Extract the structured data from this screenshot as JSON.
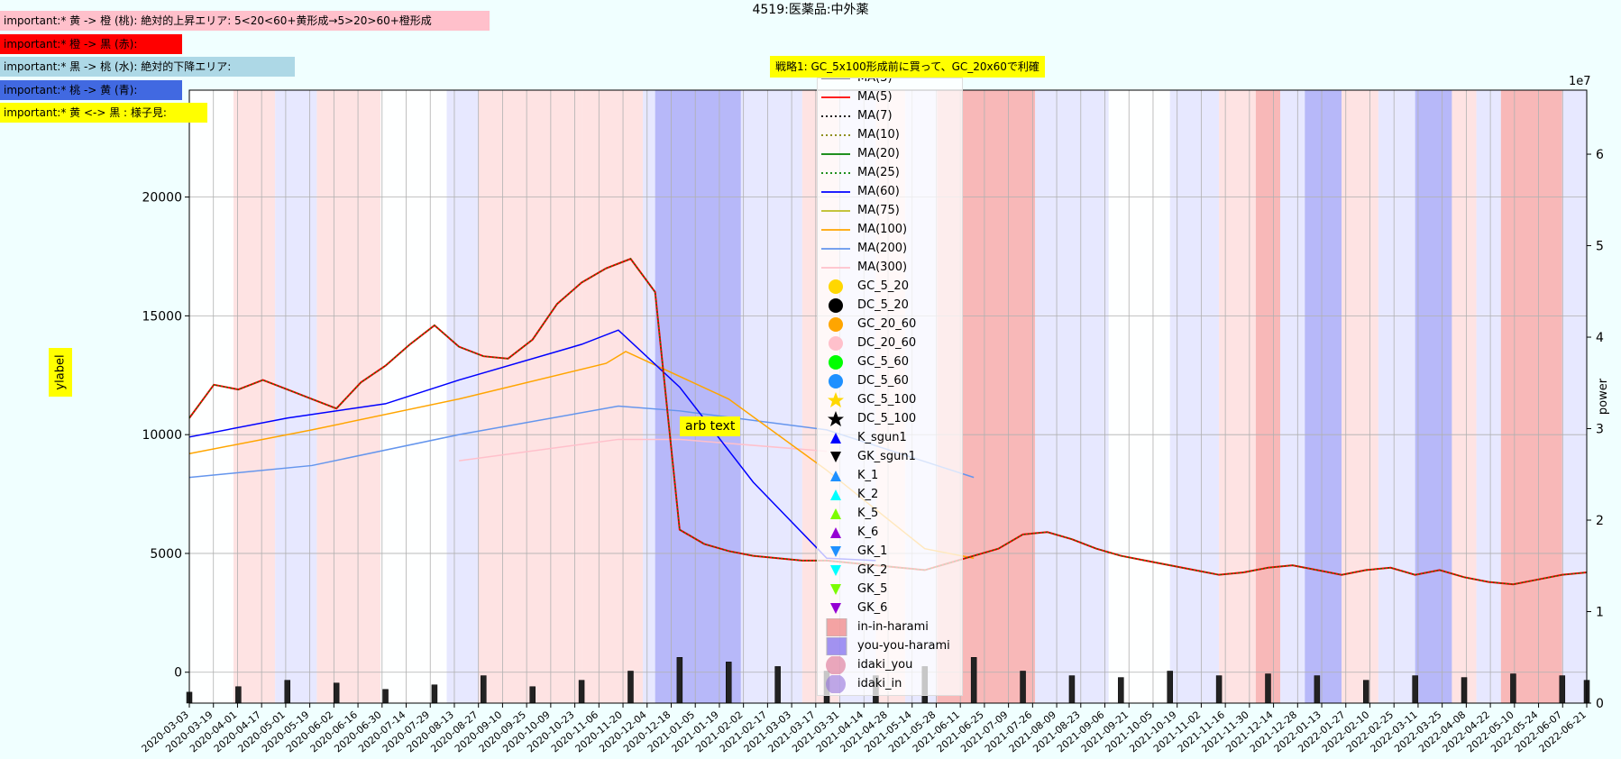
{
  "notes": [
    "important:* 黄 -> 橙 (桃): 絶対的上昇エリア: 5<20<60+黄形成→5>20>60+橙形成",
    "important:* 橙 -> 黒 (赤):",
    "important:* 黒 -> 桃 (水): 絶対的下降エリア:",
    "important:* 桃 -> 黄 (青):",
    "important:* 黄 <-> 黒 : 様子見:"
  ],
  "chart_data": {
    "type": "line",
    "title": "4519:医薬品:中外薬",
    "annotation_strategy": "戦略1: GC_5x100形成前に買って、GC_20x60で利確",
    "annotation_arb": "arb text",
    "ylabel": "ylabel",
    "y2label": "power",
    "y2_multiplier": "1e7",
    "ylim": [
      -1300,
      24500
    ],
    "y2lim": [
      0,
      6.7
    ],
    "yticks": [
      "0",
      "5000",
      "10000",
      "15000",
      "20000"
    ],
    "y2ticks": [
      "0",
      "1",
      "2",
      "3",
      "4",
      "5",
      "6"
    ],
    "x_start": "2020-03-03",
    "x_end": "2022-06-21",
    "x_tick_labels": [
      "2020-03-03",
      "2020-03-19",
      "2020-04-01",
      "2020-04-17",
      "2020-05-01",
      "2020-05-19",
      "2020-06-02",
      "2020-06-16",
      "2020-06-30",
      "2020-07-14",
      "2020-07-29",
      "2020-08-13",
      "2020-08-27",
      "2020-09-10",
      "2020-09-25",
      "2020-10-09",
      "2020-10-23",
      "2020-11-06",
      "2020-11-20",
      "2020-12-04",
      "2020-12-18",
      "2021-01-05",
      "2021-01-19",
      "2021-02-02",
      "2021-02-17",
      "2021-03-03",
      "2021-03-17",
      "2021-03-31",
      "2021-04-14",
      "2021-04-28",
      "2021-05-14",
      "2021-05-28",
      "2021-06-11",
      "2021-06-25",
      "2021-07-09",
      "2021-07-26",
      "2021-08-09",
      "2021-08-23",
      "2021-09-06",
      "2021-09-21",
      "2021-10-05",
      "2021-10-19",
      "2021-11-02",
      "2021-11-16",
      "2021-11-30",
      "2021-12-14",
      "2021-12-28",
      "2022-01-13",
      "2022-01-27",
      "2022-02-10",
      "2022-02-25",
      "2022-03-11",
      "2022-03-25",
      "2022-04-08",
      "2022-04-22",
      "2022-05-10",
      "2022-05-24",
      "2022-06-07",
      "2022-06-21"
    ],
    "price_series": {
      "name": "price",
      "x": [
        0,
        10,
        20,
        30,
        40,
        50,
        60,
        70,
        80,
        90,
        100,
        110,
        120,
        130,
        140,
        150,
        160,
        170,
        180,
        190,
        200,
        210,
        220,
        230,
        240,
        250,
        260,
        270,
        280,
        290,
        300,
        310,
        320,
        330,
        340,
        350,
        360,
        370,
        380,
        390,
        400,
        410,
        420,
        430,
        440,
        450,
        460,
        470,
        480,
        490,
        500,
        510,
        520,
        530,
        540,
        550,
        560,
        570
      ],
      "y": [
        10700,
        12100,
        11900,
        12300,
        11900,
        11500,
        11100,
        12200,
        12900,
        13800,
        14600,
        13700,
        13300,
        13200,
        14000,
        15500,
        16400,
        17000,
        17400,
        16000,
        6000,
        5400,
        5100,
        4900,
        4800,
        4700,
        4700,
        4600,
        4500,
        4400,
        4300,
        4600,
        4900,
        5200,
        5800,
        5900,
        5600,
        5200,
        4900,
        4700,
        4500,
        4300,
        4100,
        4200,
        4400,
        4500,
        4300,
        4100,
        4300,
        4400,
        4100,
        4300,
        4000,
        3800,
        3700,
        3900,
        4100,
        4200
      ]
    },
    "moving_averages": [
      {
        "name": "MA(3)",
        "color": "#808080",
        "dash": "solid"
      },
      {
        "name": "MA(5)",
        "color": "#ff0000",
        "dash": "solid"
      },
      {
        "name": "MA(7)",
        "color": "#000000",
        "dash": "dotted"
      },
      {
        "name": "MA(10)",
        "color": "#808000",
        "dash": "dotted"
      },
      {
        "name": "MA(20)",
        "color": "#008000",
        "dash": "solid"
      },
      {
        "name": "MA(25)",
        "color": "#008000",
        "dash": "dotted"
      },
      {
        "name": "MA(60)",
        "color": "#0000ff",
        "dash": "solid"
      },
      {
        "name": "MA(75)",
        "color": "#bcbd22",
        "dash": "solid"
      },
      {
        "name": "MA(100)",
        "color": "#ffa500",
        "dash": "solid"
      },
      {
        "name": "MA(200)",
        "color": "#6495ed",
        "dash": "solid"
      },
      {
        "name": "MA(300)",
        "color": "#ffc0cb",
        "dash": "solid"
      }
    ],
    "ma60_series": {
      "x": [
        0,
        40,
        80,
        110,
        160,
        175,
        200,
        230,
        260,
        280
      ],
      "y": [
        9900,
        10700,
        11300,
        12300,
        13800,
        14400,
        12000,
        8000,
        4800,
        4700
      ]
    },
    "ma100_series": {
      "x": [
        0,
        50,
        110,
        170,
        178,
        220,
        260,
        300,
        320
      ],
      "y": [
        9200,
        10200,
        11500,
        13000,
        13500,
        11500,
        8500,
        5200,
        4800
      ]
    },
    "ma200_series": {
      "x": [
        0,
        50,
        110,
        175,
        200,
        260,
        320
      ],
      "y": [
        8200,
        8700,
        10000,
        11200,
        11000,
        10200,
        8200
      ]
    },
    "ma300_series": {
      "x": [
        110,
        175,
        200,
        260
      ],
      "y": [
        8900,
        9800,
        9800,
        9300
      ]
    },
    "volume_series": {
      "x": [
        0,
        20,
        40,
        60,
        80,
        100,
        120,
        140,
        160,
        180,
        200,
        220,
        240,
        260,
        280,
        300,
        320,
        340,
        360,
        380,
        400,
        420,
        440,
        460,
        480,
        500,
        520,
        540,
        560,
        570
      ],
      "y": [
        0.12,
        0.18,
        0.25,
        0.22,
        0.15,
        0.2,
        0.3,
        0.18,
        0.25,
        0.35,
        0.5,
        0.45,
        0.4,
        0.35,
        0.3,
        0.4,
        0.5,
        0.35,
        0.3,
        0.28,
        0.35,
        0.3,
        0.32,
        0.3,
        0.25,
        0.3,
        0.28,
        0.32,
        0.3,
        0.25
      ]
    },
    "legend": [
      "MA(3)",
      "MA(5)",
      "MA(7)",
      "MA(10)",
      "MA(20)",
      "MA(25)",
      "MA(60)",
      "MA(75)",
      "MA(100)",
      "MA(200)",
      "MA(300)",
      "GC_5_20",
      "DC_5_20",
      "GC_20_60",
      "DC_20_60",
      "GC_5_60",
      "DC_5_60",
      "GC_5_100",
      "DC_5_100",
      "K_sgun1",
      "GK_sgun1",
      "K_1",
      "K_2",
      "K_5",
      "K_6",
      "GK_1",
      "GK_2",
      "GK_5",
      "GK_6",
      "in-in-harami",
      "you-you-harami",
      "idaki_you",
      "idaki_in"
    ],
    "legend_colors": {
      "GC_5_20": "#ffd700",
      "DC_5_20": "#000000",
      "GC_20_60": "#ffa500",
      "DC_20_60": "#ffc0cb",
      "GC_5_60": "#00ff00",
      "DC_5_60": "#1e90ff",
      "GC_5_100": "#ffd700",
      "DC_5_100": "#000000",
      "K_sgun1": "#0000ff",
      "GK_sgun1": "#000000",
      "K_1": "#1e90ff",
      "K_2": "#00ffff",
      "K_5": "#7cfc00",
      "K_6": "#9400d3",
      "GK_1": "#1e90ff",
      "GK_2": "#00ffff",
      "GK_5": "#7cfc00",
      "GK_6": "#9400d3",
      "in-in-harami": "#f08080",
      "you-you-harami": "#7b68ee",
      "idaki_you": "#db7093",
      "idaki_in": "#9370db"
    },
    "regions": [
      {
        "x0": 0,
        "x1": 18,
        "color": "#ffffff"
      },
      {
        "x0": 18,
        "x1": 35,
        "color": "#ffe0e0"
      },
      {
        "x0": 35,
        "x1": 52,
        "color": "#e6e6ff"
      },
      {
        "x0": 52,
        "x1": 78,
        "color": "#ffe0e0"
      },
      {
        "x0": 78,
        "x1": 105,
        "color": "#ffffff"
      },
      {
        "x0": 105,
        "x1": 118,
        "color": "#e6e6ff"
      },
      {
        "x0": 118,
        "x1": 160,
        "color": "#ffe0e0"
      },
      {
        "x0": 160,
        "x1": 185,
        "color": "#ffe0e0"
      },
      {
        "x0": 185,
        "x1": 190,
        "color": "#e6e6ff"
      },
      {
        "x0": 190,
        "x1": 225,
        "color": "#b0b0f8"
      },
      {
        "x0": 225,
        "x1": 250,
        "color": "#e6e6ff"
      },
      {
        "x0": 250,
        "x1": 265,
        "color": "#ffe0e0"
      },
      {
        "x0": 265,
        "x1": 280,
        "color": "#e6e6ff"
      },
      {
        "x0": 280,
        "x1": 292,
        "color": "#ffe0e0"
      },
      {
        "x0": 292,
        "x1": 305,
        "color": "#e6e6ff"
      },
      {
        "x0": 305,
        "x1": 345,
        "color": "#f8b0b0"
      },
      {
        "x0": 345,
        "x1": 375,
        "color": "#e6e6ff"
      },
      {
        "x0": 375,
        "x1": 400,
        "color": "#ffffff"
      },
      {
        "x0": 400,
        "x1": 420,
        "color": "#e6e6ff"
      },
      {
        "x0": 420,
        "x1": 435,
        "color": "#ffe0e0"
      },
      {
        "x0": 435,
        "x1": 445,
        "color": "#f8b0b0"
      },
      {
        "x0": 445,
        "x1": 455,
        "color": "#e6e6ff"
      },
      {
        "x0": 455,
        "x1": 470,
        "color": "#b0b0f8"
      },
      {
        "x0": 470,
        "x1": 485,
        "color": "#ffe0e0"
      },
      {
        "x0": 485,
        "x1": 500,
        "color": "#e6e6ff"
      },
      {
        "x0": 500,
        "x1": 515,
        "color": "#b0b0f8"
      },
      {
        "x0": 515,
        "x1": 525,
        "color": "#ffe0e0"
      },
      {
        "x0": 525,
        "x1": 535,
        "color": "#e6e6ff"
      },
      {
        "x0": 535,
        "x1": 560,
        "color": "#f8b0b0"
      },
      {
        "x0": 560,
        "x1": 570,
        "color": "#e6e6ff"
      }
    ],
    "grid": true
  }
}
